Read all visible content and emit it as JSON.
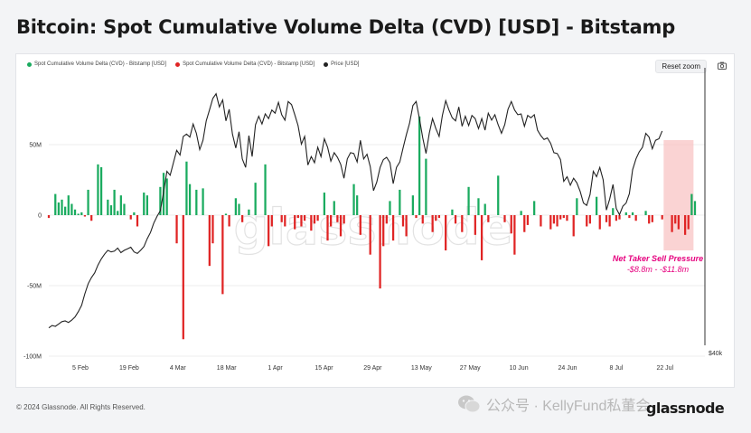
{
  "page_title": "Bitcoin: Spot Cumulative Volume Delta (CVD) [USD] - Bitstamp",
  "legend": [
    {
      "label": "Spot Cumulative Volume Delta (CVD) - Bitstamp [USD]",
      "color": "#1aab5f"
    },
    {
      "label": "Spot Cumulative Volume Delta (CVD) - Bitstamp [USD]",
      "color": "#e02424"
    },
    {
      "label": "Price [USD]",
      "color": "#222222"
    }
  ],
  "controls": {
    "reset_zoom": "Reset zoom"
  },
  "annotation": {
    "title": "Net Taker Sell Pressure",
    "range": "-$8.8m - -$11.8m",
    "color": "#e6007e"
  },
  "watermark": "glassnode",
  "footer": {
    "copyright": "© 2024 Glassnode. All Rights Reserved.",
    "wechat": "公众号 · KellyFund私董会",
    "brand": "glassnode"
  },
  "chart_data": {
    "type": "bar",
    "x_ticks": [
      "5 Feb",
      "19 Feb",
      "4 Mar",
      "18 Mar",
      "1 Apr",
      "15 Apr",
      "29 Apr",
      "13 May",
      "27 May",
      "10 Jun",
      "24 Jun",
      "8 Jul",
      "22 Jul"
    ],
    "y_ticks": [
      "50M",
      "0",
      "-50M",
      "-100M"
    ],
    "y_right_label": "$40k",
    "ylim": [
      -100,
      72
    ],
    "grid": true,
    "colors": {
      "positive": "#1aab5f",
      "negative": "#e02424",
      "price": "#222222",
      "highlight": "#f8c4c4"
    },
    "series": [
      {
        "name": "Spot Cumulative Volume Delta (CVD) - Bitstamp [USD]",
        "unit": "M USD",
        "values": [
          -2,
          0,
          15,
          9,
          11,
          6,
          14,
          8,
          4,
          1,
          2,
          -1,
          18,
          -4,
          0,
          36,
          34,
          0,
          11,
          7,
          18,
          3,
          14,
          8,
          0,
          -3,
          2,
          -8,
          0,
          16,
          14,
          0,
          0,
          0,
          20,
          30,
          26,
          0,
          0,
          -20,
          0,
          -88,
          38,
          22,
          0,
          18,
          0,
          19,
          0,
          -36,
          -20,
          0,
          0,
          -56,
          1,
          -8,
          0,
          12,
          8,
          -5,
          0,
          4,
          0,
          23,
          0,
          0,
          36,
          -22,
          -8,
          0,
          0,
          -5,
          -8,
          0,
          0,
          -10,
          -2,
          -8,
          -4,
          0,
          -11,
          -6,
          -4,
          0,
          16,
          -18,
          -8,
          10,
          -5,
          -15,
          -6,
          0,
          0,
          22,
          14,
          -14,
          0,
          0,
          -28,
          0,
          0,
          -52,
          -22,
          -6,
          10,
          -18,
          0,
          18,
          -8,
          -15,
          0,
          14,
          -2,
          70,
          -6,
          40,
          0,
          -12,
          -4,
          -2,
          0,
          -25,
          0,
          4,
          -6,
          0,
          -12,
          0,
          20,
          0,
          -14,
          12,
          -32,
          8,
          -5,
          0,
          0,
          28,
          0,
          -5,
          0,
          -13,
          -28,
          0,
          3,
          -12,
          -7,
          0,
          10,
          0,
          -8,
          0,
          0,
          -10,
          -6,
          -8,
          -3,
          -2,
          -4,
          0,
          -15,
          12,
          0,
          0,
          -8,
          -6,
          0,
          13,
          -10,
          0,
          -5,
          -8,
          5,
          -4,
          -3,
          0,
          2,
          -2,
          2,
          -4,
          0,
          0,
          3,
          -6,
          -5,
          0,
          0,
          -3,
          0,
          0,
          -12,
          -6,
          -10,
          0,
          -14,
          -10,
          15,
          10
        ]
      },
      {
        "name": "Price [USD]",
        "unit": "USD",
        "values": [
          42100,
          42400,
          42300,
          42600,
          42900,
          43000,
          42800,
          43100,
          43500,
          44200,
          45000,
          46500,
          47800,
          48600,
          49200,
          50200,
          51000,
          51600,
          52100,
          51900,
          52000,
          52400,
          51800,
          52100,
          52300,
          52500,
          51900,
          51700,
          52100,
          52600,
          53600,
          54400,
          55600,
          56500,
          57200,
          59600,
          62300,
          61800,
          63400,
          65000,
          64400,
          66800,
          67100,
          66700,
          68400,
          67200,
          65100,
          66300,
          68800,
          70200,
          71700,
          72300,
          70600,
          71500,
          68800,
          70300,
          67100,
          65300,
          67400,
          63900,
          62800,
          66900,
          64200,
          68300,
          69400,
          68400,
          69700,
          69100,
          70200,
          69800,
          71200,
          69600,
          68900,
          71300,
          70900,
          69600,
          68200,
          65800,
          66800,
          63100,
          64200,
          63400,
          65400,
          64200,
          66500,
          65400,
          63600,
          64700,
          64100,
          63200,
          61400,
          63900,
          64700,
          64600,
          63500,
          66300,
          63900,
          64500,
          62900,
          59800,
          60900,
          62800,
          63800,
          64100,
          63400,
          60700,
          62800,
          63500,
          65300,
          67000,
          68500,
          70800,
          71300,
          69100,
          66600,
          64600,
          67200,
          69100,
          67800,
          66800,
          69500,
          71400,
          70200,
          69200,
          68800,
          70600,
          68100,
          69400,
          68200,
          69500,
          69100,
          67800,
          69100,
          67600,
          69800,
          68900,
          69600,
          68300,
          67200,
          68300,
          70300,
          71300,
          70200,
          69600,
          69700,
          68100,
          69500,
          69200,
          69600,
          67600,
          66900,
          66400,
          66600,
          65900,
          64700,
          64600,
          63800,
          61000,
          61600,
          60500,
          61400,
          60800,
          59700,
          58200,
          57900,
          59300,
          62300,
          61600,
          62800,
          61200,
          57300,
          58700,
          60600,
          57500,
          56700,
          57800,
          58200,
          59400,
          62500,
          63900,
          64800,
          65400,
          67200,
          66700,
          65200,
          66300,
          66500,
          67500
        ]
      }
    ],
    "price_ylim": [
      36000,
      76000
    ],
    "highlight_range_index": [
      188,
      196
    ]
  }
}
